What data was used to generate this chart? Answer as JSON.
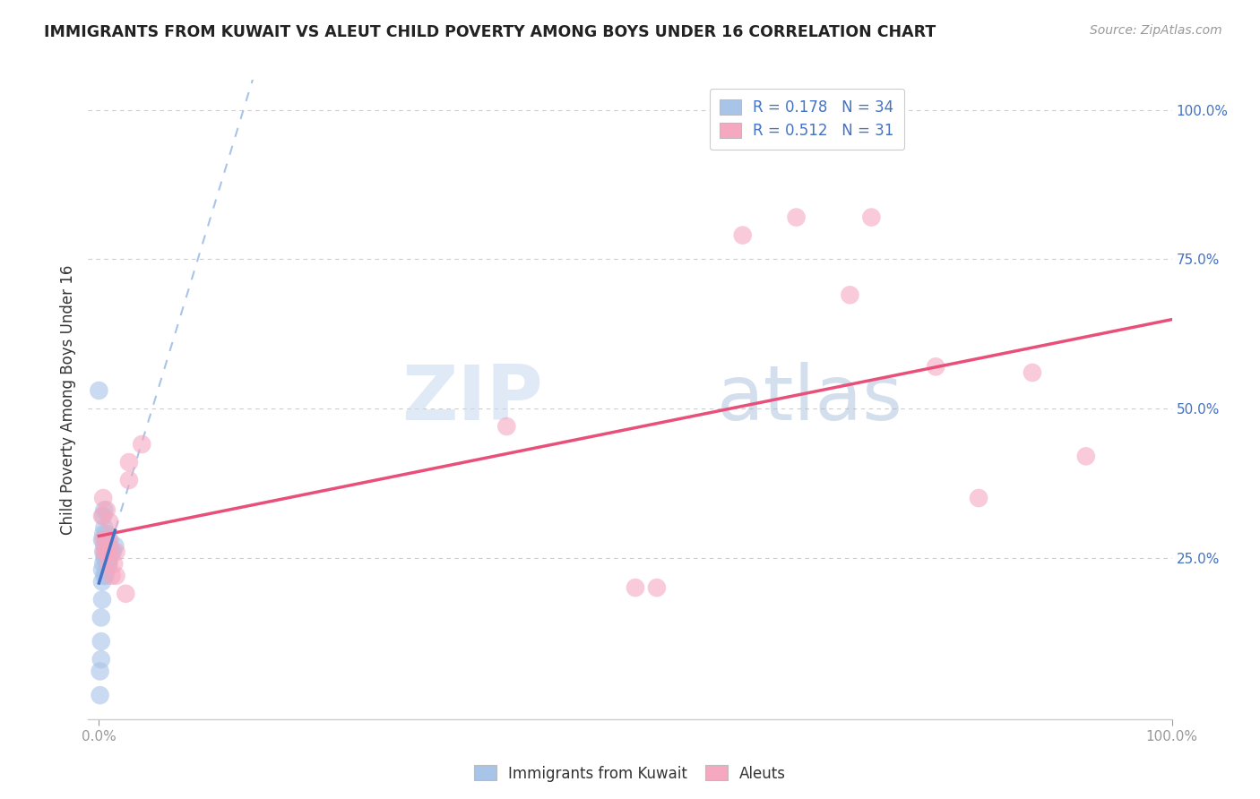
{
  "title": "IMMIGRANTS FROM KUWAIT VS ALEUT CHILD POVERTY AMONG BOYS UNDER 16 CORRELATION CHART",
  "source": "Source: ZipAtlas.com",
  "ylabel": "Child Poverty Among Boys Under 16",
  "background_color": "#ffffff",
  "kuwait_color": "#a8c4e8",
  "aleut_color": "#f5a8c0",
  "kuwait_R": 0.178,
  "kuwait_N": 34,
  "aleut_R": 0.512,
  "aleut_N": 31,
  "kuwait_line_color": "#4472c4",
  "aleut_line_color": "#e8507a",
  "dashed_line_color": "#a8c4e8",
  "grid_color": "#cccccc",
  "watermark_zip": "ZIP",
  "watermark_atlas": "atlas",
  "kuwait_points_x": [
    0.001,
    0.001,
    0.002,
    0.002,
    0.002,
    0.003,
    0.003,
    0.003,
    0.003,
    0.004,
    0.004,
    0.004,
    0.004,
    0.005,
    0.005,
    0.005,
    0.005,
    0.005,
    0.006,
    0.006,
    0.006,
    0.007,
    0.007,
    0.007,
    0.008,
    0.008,
    0.009,
    0.009,
    0.01,
    0.01,
    0.012,
    0.013,
    0.015,
    0.0
  ],
  "kuwait_points_y": [
    0.02,
    0.06,
    0.08,
    0.11,
    0.15,
    0.18,
    0.21,
    0.23,
    0.28,
    0.24,
    0.26,
    0.29,
    0.32,
    0.22,
    0.25,
    0.27,
    0.3,
    0.33,
    0.22,
    0.25,
    0.28,
    0.23,
    0.26,
    0.29,
    0.24,
    0.27,
    0.24,
    0.27,
    0.25,
    0.28,
    0.26,
    0.26,
    0.27,
    0.53
  ],
  "aleut_points_x": [
    0.003,
    0.004,
    0.004,
    0.005,
    0.006,
    0.007,
    0.007,
    0.008,
    0.009,
    0.009,
    0.01,
    0.01,
    0.012,
    0.014,
    0.016,
    0.016,
    0.025,
    0.028,
    0.028,
    0.04,
    0.5,
    0.52,
    0.6,
    0.65,
    0.7,
    0.72,
    0.78,
    0.82,
    0.87,
    0.92,
    0.38
  ],
  "aleut_points_y": [
    0.32,
    0.35,
    0.28,
    0.26,
    0.26,
    0.33,
    0.28,
    0.26,
    0.24,
    0.28,
    0.26,
    0.31,
    0.22,
    0.24,
    0.22,
    0.26,
    0.19,
    0.38,
    0.41,
    0.44,
    0.2,
    0.2,
    0.79,
    0.82,
    0.69,
    0.82,
    0.57,
    0.35,
    0.56,
    0.42,
    0.47
  ]
}
